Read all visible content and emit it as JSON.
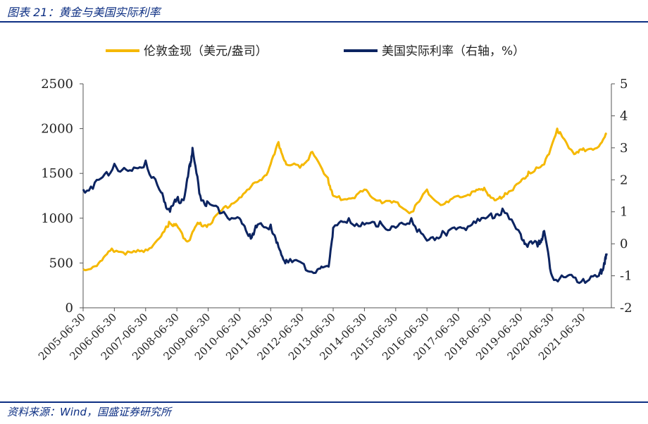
{
  "header": {
    "title": "图表 21：黄金与美国实际利率"
  },
  "footer": {
    "source": "资料来源：Wind，国盛证券研究所"
  },
  "colors": {
    "gold": "#f5b800",
    "rate": "#0c2461",
    "brand": "#0d2f83"
  },
  "chart_data": {
    "type": "line",
    "grid": false,
    "legend_position": "top",
    "x_tick_labels": [
      "2005-06-30",
      "2006-06-30",
      "2007-06-30",
      "2008-06-30",
      "2009-06-30",
      "2010-06-30",
      "2011-06-30",
      "2012-06-30",
      "2013-06-30",
      "2014-06-30",
      "2015-06-30",
      "2016-06-30",
      "2017-06-30",
      "2018-06-30",
      "2019-06-30",
      "2020-06-30",
      "2021-06-30"
    ],
    "y_left": {
      "range": [
        0,
        2500
      ],
      "ticks": [
        "0",
        "500",
        "1000",
        "1500",
        "2000",
        "2500"
      ]
    },
    "y_right": {
      "range": [
        -2,
        5
      ],
      "ticks": [
        "-2",
        "-1",
        "0",
        "1",
        "2",
        "3",
        "4",
        "5"
      ]
    },
    "series": [
      {
        "name": "伦敦金现（美元/盎司）",
        "axis": "left",
        "color": "#f5b800",
        "x": [
          "2005-06",
          "2005-12",
          "2006-05",
          "2006-12",
          "2007-06",
          "2007-12",
          "2008-03",
          "2008-06",
          "2008-10",
          "2009-02",
          "2009-06",
          "2009-12",
          "2010-06",
          "2010-12",
          "2011-05",
          "2011-09",
          "2011-12",
          "2012-06",
          "2012-10",
          "2013-04",
          "2013-06",
          "2013-12",
          "2014-06",
          "2014-12",
          "2015-06",
          "2015-12",
          "2016-06",
          "2016-12",
          "2017-06",
          "2017-12",
          "2018-04",
          "2018-08",
          "2018-12",
          "2019-06",
          "2019-09",
          "2020-03",
          "2020-08",
          "2020-11",
          "2021-03",
          "2021-06",
          "2021-12",
          "2022-03"
        ],
        "values": [
          430,
          500,
          660,
          620,
          650,
          800,
          960,
          920,
          740,
          950,
          930,
          1120,
          1230,
          1400,
          1520,
          1850,
          1600,
          1600,
          1740,
          1450,
          1250,
          1220,
          1320,
          1200,
          1180,
          1070,
          1320,
          1150,
          1250,
          1300,
          1340,
          1200,
          1280,
          1410,
          1520,
          1600,
          2000,
          1870,
          1720,
          1780,
          1800,
          1950
        ]
      },
      {
        "name": "美国实际利率（右轴，%）",
        "axis": "right",
        "color": "#0c2461",
        "x": [
          "2005-06",
          "2005-12",
          "2006-06",
          "2006-12",
          "2007-06",
          "2007-12",
          "2008-03",
          "2008-06",
          "2008-09",
          "2008-11",
          "2008-12",
          "2009-03",
          "2009-06",
          "2009-12",
          "2010-06",
          "2010-10",
          "2011-01",
          "2011-06",
          "2011-09",
          "2011-12",
          "2012-06",
          "2012-12",
          "2013-04",
          "2013-06",
          "2013-12",
          "2014-06",
          "2014-12",
          "2015-06",
          "2015-12",
          "2016-06",
          "2016-12",
          "2017-06",
          "2017-12",
          "2018-06",
          "2018-11",
          "2019-06",
          "2019-09",
          "2020-01",
          "2020-03",
          "2020-06",
          "2020-12",
          "2021-06",
          "2021-12",
          "2022-02",
          "2022-03"
        ],
        "values": [
          1.7,
          2.0,
          2.5,
          2.3,
          2.6,
          1.6,
          1.1,
          1.4,
          1.5,
          2.5,
          3.0,
          1.5,
          1.3,
          1.0,
          0.8,
          0.3,
          0.6,
          0.6,
          -0.1,
          -0.5,
          -0.6,
          -0.8,
          -0.7,
          0.5,
          0.8,
          0.6,
          0.7,
          0.5,
          0.8,
          0.1,
          0.4,
          0.5,
          0.7,
          0.9,
          1.1,
          0.3,
          0.0,
          0.1,
          0.4,
          -1.0,
          -1.0,
          -1.1,
          -1.0,
          -0.6,
          -0.3
        ]
      }
    ]
  }
}
